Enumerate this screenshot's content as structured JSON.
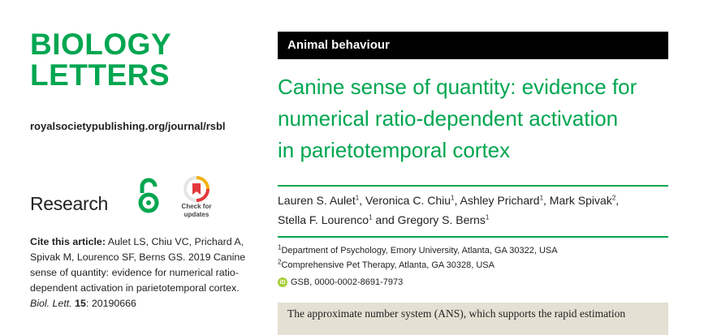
{
  "journal": {
    "logo_line1": "BIOLOGY",
    "logo_line2": "LETTERS",
    "url": "royalsocietypublishing.org/journal/rsbl",
    "brand_color": "#00a650"
  },
  "section_label": "Research",
  "check_updates": {
    "line1": "Check for",
    "line2": "updates"
  },
  "citation": {
    "lead": "Cite this article:",
    "authors_text": "Aulet LS, Chiu VC, Prichard A, Spivak M, Lourenco SF, Berns GS. 2019 Canine sense of quantity: evidence for numerical ratio-dependent activation in parietotemporal cortex.",
    "journal_abbrev": "Biol. Lett.",
    "volume": "15",
    "article_no": "20190666"
  },
  "article": {
    "category": "Animal behaviour",
    "title_lines": [
      "Canine sense of quantity: evidence for",
      "numerical ratio-dependent activation",
      "in parietotemporal cortex"
    ],
    "authors": [
      {
        "name": "Lauren S. Aulet",
        "aff": "1"
      },
      {
        "name": "Veronica C. Chiu",
        "aff": "1"
      },
      {
        "name": "Ashley Prichard",
        "aff": "1"
      },
      {
        "name": "Mark Spivak",
        "aff": "2"
      },
      {
        "name": "Stella F. Lourenco",
        "aff": "1"
      },
      {
        "name": "Gregory S. Berns",
        "aff": "1"
      }
    ],
    "author_sep": ", ",
    "author_and": " and ",
    "affiliations": [
      {
        "num": "1",
        "text": "Department of Psychology, Emory University, Atlanta, GA 30322, USA"
      },
      {
        "num": "2",
        "text": "Comprehensive Pet Therapy, Atlanta, GA 30328, USA"
      }
    ],
    "orcid": {
      "badge": "iD",
      "text": "GSB, 0000-0002-8691-7973"
    },
    "abstract_start": "The approximate number system (ANS), which supports the rapid estimation"
  }
}
